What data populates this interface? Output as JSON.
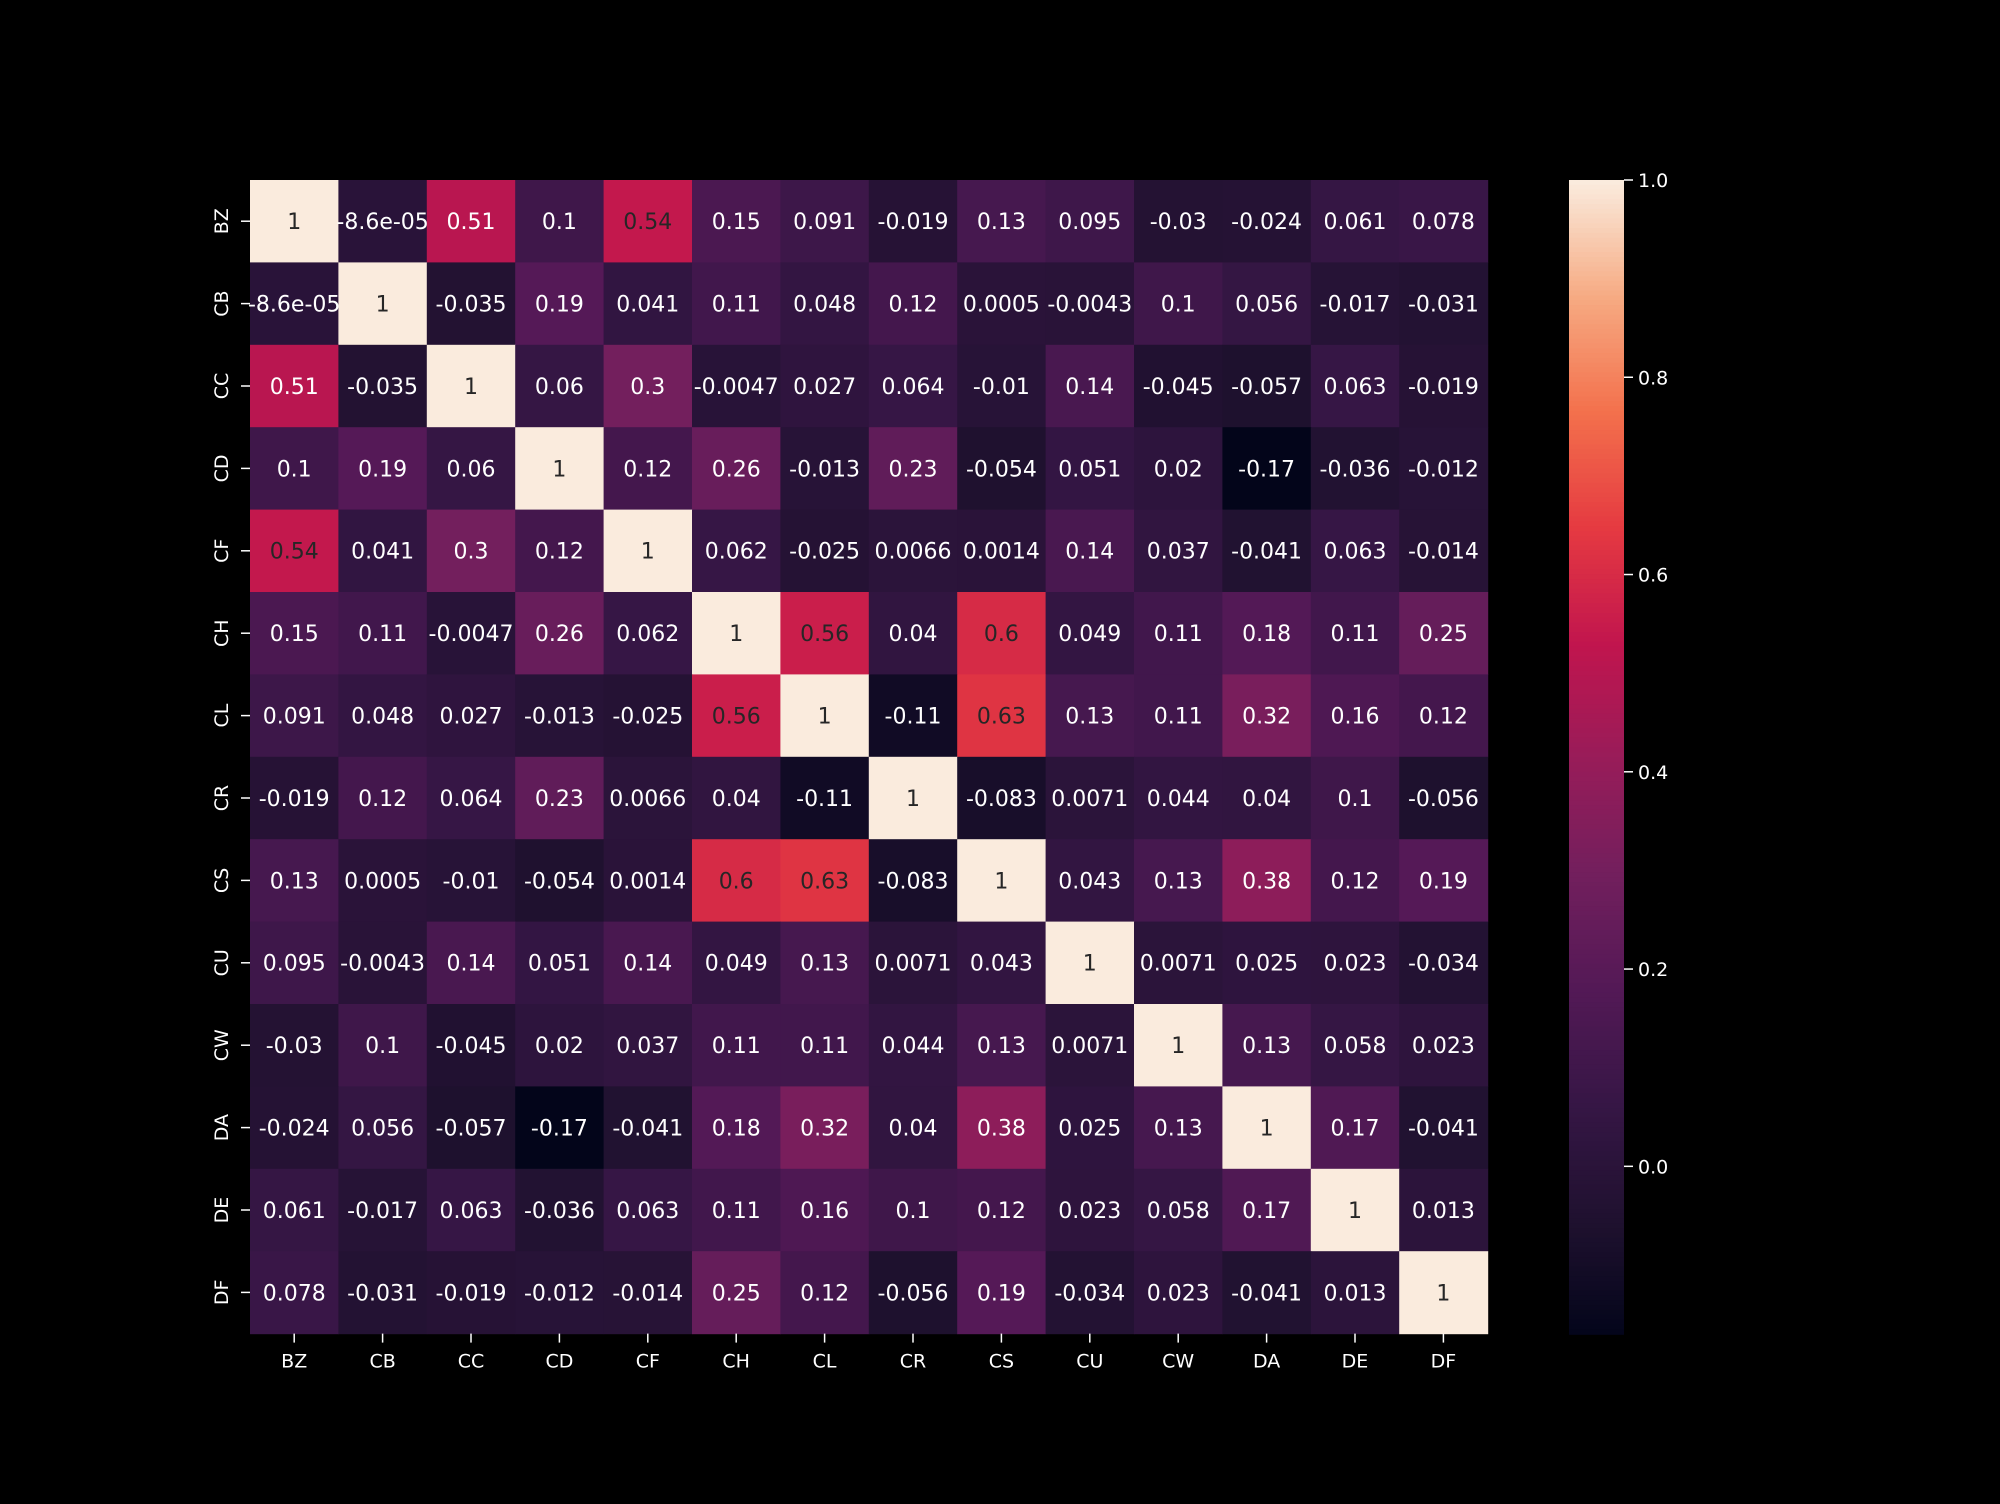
{
  "chart_data": {
    "type": "heatmap",
    "title": "",
    "xlabel": "",
    "ylabel": "",
    "x_categories": [
      "BZ",
      "CB",
      "CC",
      "CD",
      "CF",
      "CH",
      "CL",
      "CR",
      "CS",
      "CU",
      "CW",
      "DA",
      "DE",
      "DF"
    ],
    "y_categories": [
      "BZ",
      "CB",
      "CC",
      "CD",
      "CF",
      "CH",
      "CL",
      "CR",
      "CS",
      "CU",
      "CW",
      "DA",
      "DE",
      "DF"
    ],
    "values": [
      [
        1,
        -8.6e-05,
        0.51,
        0.1,
        0.54,
        0.15,
        0.091,
        -0.019,
        0.13,
        0.095,
        -0.03,
        -0.024,
        0.061,
        0.078
      ],
      [
        -8.6e-05,
        1,
        -0.035,
        0.19,
        0.041,
        0.11,
        0.048,
        0.12,
        0.0005,
        -0.0043,
        0.1,
        0.056,
        -0.017,
        -0.031
      ],
      [
        0.51,
        -0.035,
        1,
        0.06,
        0.3,
        -0.0047,
        0.027,
        0.064,
        -0.01,
        0.14,
        -0.045,
        -0.057,
        0.063,
        -0.019
      ],
      [
        0.1,
        0.19,
        0.06,
        1,
        0.12,
        0.26,
        -0.013,
        0.23,
        -0.054,
        0.051,
        0.02,
        -0.17,
        -0.036,
        -0.012
      ],
      [
        0.54,
        0.041,
        0.3,
        0.12,
        1,
        0.062,
        -0.025,
        0.0066,
        0.0014,
        0.14,
        0.037,
        -0.041,
        0.063,
        -0.014
      ],
      [
        0.15,
        0.11,
        -0.0047,
        0.26,
        0.062,
        1,
        0.56,
        0.04,
        0.6,
        0.049,
        0.11,
        0.18,
        0.11,
        0.25
      ],
      [
        0.091,
        0.048,
        0.027,
        -0.013,
        -0.025,
        0.56,
        1,
        -0.11,
        0.63,
        0.13,
        0.11,
        0.32,
        0.16,
        0.12
      ],
      [
        -0.019,
        0.12,
        0.064,
        0.23,
        0.0066,
        0.04,
        -0.11,
        1,
        -0.083,
        0.0071,
        0.044,
        0.04,
        0.1,
        -0.056
      ],
      [
        0.13,
        0.0005,
        -0.01,
        -0.054,
        0.0014,
        0.6,
        0.63,
        -0.083,
        1,
        0.043,
        0.13,
        0.38,
        0.12,
        0.19
      ],
      [
        0.095,
        -0.0043,
        0.14,
        0.051,
        0.14,
        0.049,
        0.13,
        0.0071,
        0.043,
        1,
        0.0071,
        0.025,
        0.023,
        -0.034
      ],
      [
        -0.03,
        0.1,
        -0.045,
        0.02,
        0.037,
        0.11,
        0.11,
        0.044,
        0.13,
        0.0071,
        1,
        0.13,
        0.058,
        0.023
      ],
      [
        -0.024,
        0.056,
        -0.057,
        -0.17,
        -0.041,
        0.18,
        0.32,
        0.04,
        0.38,
        0.025,
        0.13,
        1,
        0.17,
        -0.041
      ],
      [
        0.061,
        -0.017,
        0.063,
        -0.036,
        0.063,
        0.11,
        0.16,
        0.1,
        0.12,
        0.023,
        0.058,
        0.17,
        1,
        0.013
      ],
      [
        0.078,
        -0.031,
        -0.019,
        -0.012,
        -0.014,
        0.25,
        0.12,
        -0.056,
        0.19,
        -0.034,
        0.023,
        -0.041,
        0.013,
        1
      ]
    ],
    "colorbar": {
      "colormap": "rocket",
      "vmin": -0.17,
      "vmax": 1.0,
      "ticks": [
        0.0,
        0.2,
        0.4,
        0.6,
        0.8,
        1.0
      ],
      "tick_labels": [
        "0.0",
        "0.2",
        "0.4",
        "0.6",
        "0.8",
        "1.0"
      ]
    },
    "annotations": true,
    "grid": false,
    "legend": "none",
    "background_color": "#000000",
    "text_color": "#ffffff"
  }
}
